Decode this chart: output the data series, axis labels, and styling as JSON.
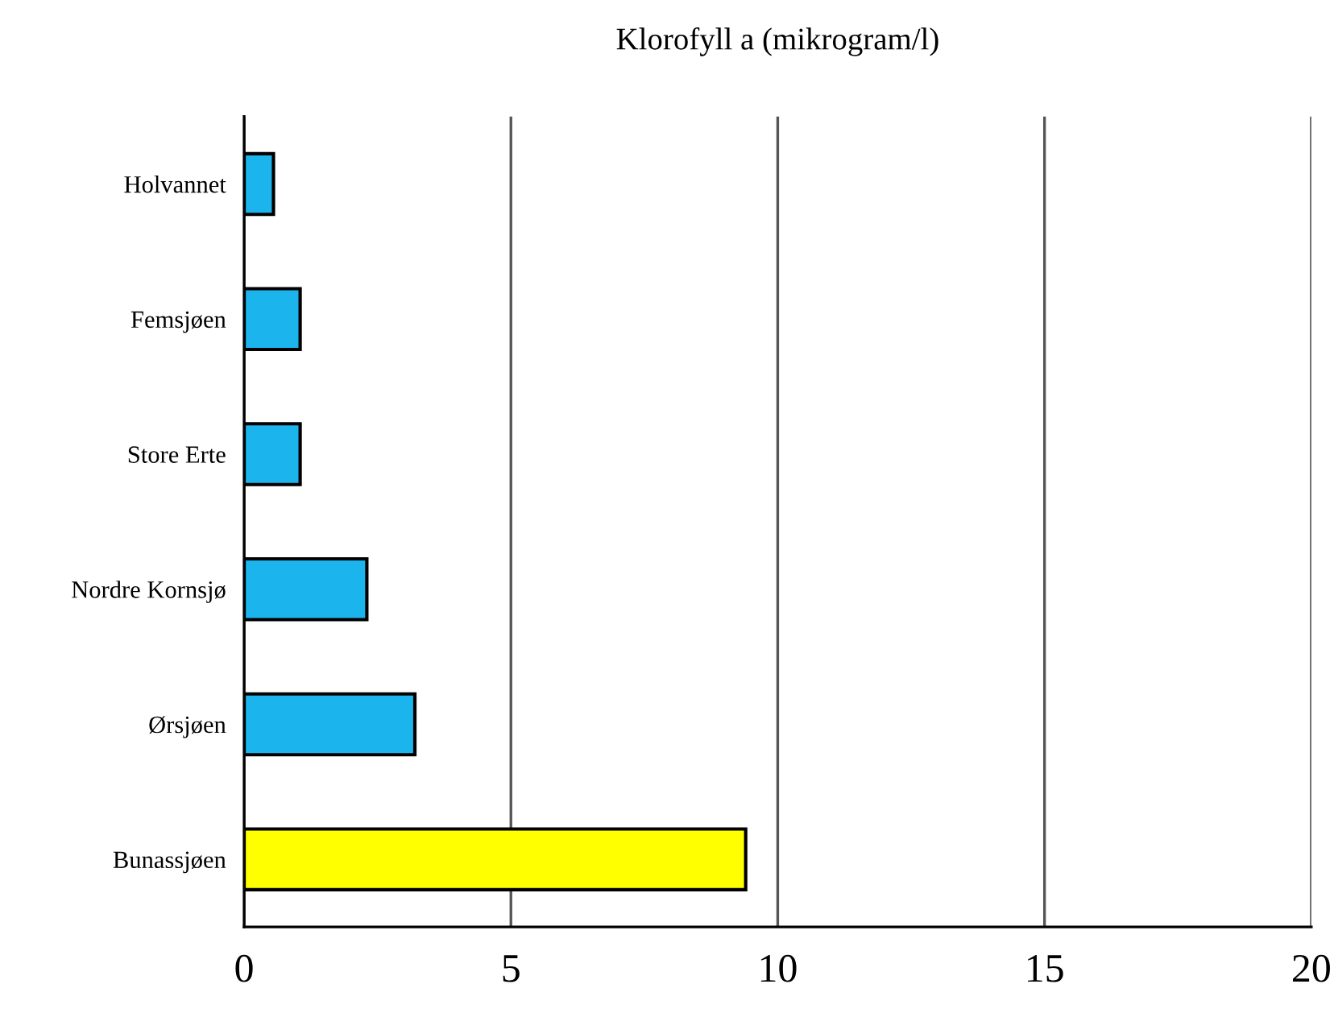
{
  "chart_data": {
    "type": "bar",
    "orientation": "horizontal",
    "title": "Klorofyll a (mikrogram/l)",
    "categories": [
      "Holvannet",
      "Femsjøen",
      "Store Erte",
      "Nordre Kornsjø",
      "Ørsjøen",
      "Bunassjøen"
    ],
    "values": [
      0.55,
      1.05,
      1.05,
      2.3,
      3.2,
      9.4
    ],
    "colors": [
      "#1cb4ec",
      "#1cb4ec",
      "#1cb4ec",
      "#1cb4ec",
      "#1cb4ec",
      "#ffff00"
    ],
    "xlim": [
      0,
      20
    ],
    "xticks": [
      0,
      5,
      10,
      15,
      20
    ],
    "grid": "x"
  }
}
